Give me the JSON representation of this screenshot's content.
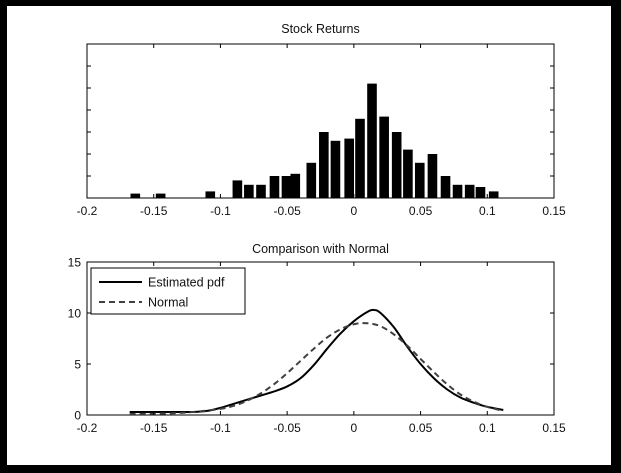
{
  "chart_data": [
    {
      "type": "bar",
      "title": "Stock Returns",
      "xlim": [
        -0.2,
        0.15
      ],
      "ylim": [
        0,
        35
      ],
      "grid": false,
      "x_ticks": [
        -0.2,
        -0.15,
        -0.1,
        -0.05,
        0,
        0.05,
        0.1,
        0.15
      ],
      "x_tick_labels": [
        "-0.2",
        "-0.15",
        "-0.1",
        "-0.05",
        "0",
        "0.05",
        "0.1",
        "0.15"
      ],
      "y_tick_labels": [],
      "bin_width": 0.0072,
      "bins": [
        {
          "x": -0.1638,
          "value": 1
        },
        {
          "x": -0.1448,
          "value": 1
        },
        {
          "x": -0.1076,
          "value": 1.5
        },
        {
          "x": -0.0873,
          "value": 4
        },
        {
          "x": -0.0787,
          "value": 3
        },
        {
          "x": -0.0696,
          "value": 3
        },
        {
          "x": -0.0595,
          "value": 5
        },
        {
          "x": -0.0505,
          "value": 5
        },
        {
          "x": -0.0439,
          "value": 5.5
        },
        {
          "x": -0.0319,
          "value": 8
        },
        {
          "x": -0.0225,
          "value": 15
        },
        {
          "x": -0.0138,
          "value": 13
        },
        {
          "x": -0.0035,
          "value": 13.5
        },
        {
          "x": 0.0046,
          "value": 18
        },
        {
          "x": 0.0136,
          "value": 26
        },
        {
          "x": 0.0227,
          "value": 18.5
        },
        {
          "x": 0.0321,
          "value": 15
        },
        {
          "x": 0.0405,
          "value": 11
        },
        {
          "x": 0.0494,
          "value": 8
        },
        {
          "x": 0.0589,
          "value": 10
        },
        {
          "x": 0.0687,
          "value": 5
        },
        {
          "x": 0.0777,
          "value": 3
        },
        {
          "x": 0.0868,
          "value": 3
        },
        {
          "x": 0.0949,
          "value": 2.5
        },
        {
          "x": 0.1048,
          "value": 1.5
        }
      ]
    },
    {
      "type": "line",
      "title": "Comparison with Normal",
      "xlim": [
        -0.2,
        0.15
      ],
      "ylim": [
        0,
        15
      ],
      "grid": false,
      "legend_position": "top-left",
      "x_ticks": [
        -0.2,
        -0.15,
        -0.1,
        -0.05,
        0,
        0.05,
        0.1,
        0.15
      ],
      "x_tick_labels": [
        "-0.2",
        "-0.15",
        "-0.1",
        "-0.05",
        "0",
        "0.05",
        "0.1",
        "0.15"
      ],
      "y_ticks": [
        0,
        5,
        10,
        15
      ],
      "y_tick_labels": [
        "0",
        "5",
        "10",
        "15"
      ],
      "series": [
        {
          "name": "Estimated pdf",
          "style": "solid",
          "color": "#000000",
          "x": [
            -0.168,
            -0.14,
            -0.12,
            -0.11,
            -0.1,
            -0.09,
            -0.08,
            -0.07,
            -0.06,
            -0.05,
            -0.04,
            -0.03,
            -0.02,
            -0.01,
            0,
            0.01,
            0.015,
            0.02,
            0.03,
            0.04,
            0.05,
            0.06,
            0.07,
            0.08,
            0.09,
            0.1,
            0.112
          ],
          "y": [
            0.3,
            0.3,
            0.3,
            0.4,
            0.7,
            1.1,
            1.5,
            1.9,
            2.3,
            2.8,
            3.6,
            4.9,
            6.5,
            8.0,
            9.2,
            10.1,
            10.3,
            10.0,
            8.6,
            6.7,
            5.0,
            3.6,
            2.5,
            1.7,
            1.2,
            0.8,
            0.5
          ]
        },
        {
          "name": "Normal",
          "style": "dashed",
          "color": "#404040",
          "x": [
            -0.168,
            -0.14,
            -0.12,
            -0.1,
            -0.09,
            -0.08,
            -0.07,
            -0.06,
            -0.05,
            -0.04,
            -0.03,
            -0.02,
            -0.01,
            0,
            0.01,
            0.02,
            0.03,
            0.04,
            0.05,
            0.06,
            0.07,
            0.08,
            0.09,
            0.1,
            0.112
          ],
          "y": [
            0.1,
            0.15,
            0.3,
            0.6,
            0.9,
            1.4,
            2.1,
            3.0,
            4.1,
            5.3,
            6.5,
            7.6,
            8.4,
            8.9,
            9.0,
            8.7,
            7.9,
            6.8,
            5.5,
            4.2,
            3.0,
            2.0,
            1.3,
            0.8,
            0.4
          ]
        }
      ]
    }
  ]
}
